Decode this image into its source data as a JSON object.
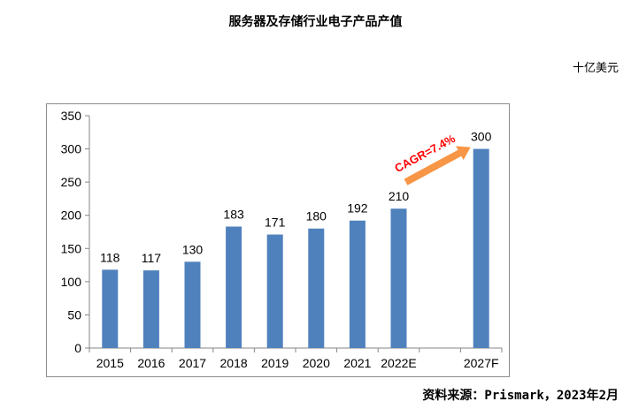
{
  "header": {
    "title": "服务器及存储行业电子产品产值",
    "unit": "十亿美元"
  },
  "footer": {
    "source": "资料来源：Prismark，2023年2月"
  },
  "chart_data": {
    "type": "bar",
    "title": "服务器及存储行业电子产品产值",
    "xlabel": "",
    "ylabel": "",
    "unit": "十亿美元",
    "categories": [
      "2015",
      "2016",
      "2017",
      "2018",
      "2019",
      "2020",
      "2021",
      "2022E",
      "",
      "2027F"
    ],
    "values": [
      118,
      117,
      130,
      183,
      171,
      180,
      192,
      210,
      null,
      300
    ],
    "ylim": [
      0,
      350
    ],
    "yticks": [
      0,
      50,
      100,
      150,
      200,
      250,
      300,
      350
    ],
    "grid": false,
    "legend": "none",
    "bar_color": "#4f81bd",
    "annotation": {
      "text": "CAGR=7.4%",
      "from_category": "2022E",
      "to_category": "2027F",
      "arrow_color": "#f79646",
      "text_color": "#ff0000"
    }
  }
}
